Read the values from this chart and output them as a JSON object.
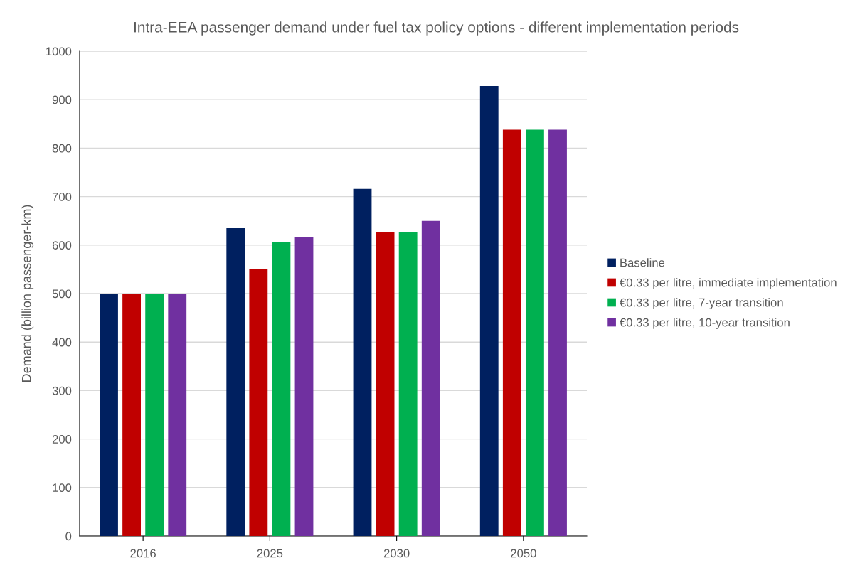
{
  "chart_data": {
    "type": "bar",
    "title": "Intra-EEA passenger demand under fuel tax policy options - different implementation periods",
    "ylabel": "Demand (billion passenger-km)",
    "categories": [
      "2016",
      "2025",
      "2030",
      "2050"
    ],
    "series": [
      {
        "name": "Baseline",
        "color": "#002060",
        "values": [
          500,
          635,
          716,
          928
        ]
      },
      {
        "name": "€0.33 per litre, immediate implementation",
        "color": "#c00000",
        "values": [
          500,
          550,
          626,
          838
        ]
      },
      {
        "name": "€0.33 per litre, 7-year transition",
        "color": "#00b050",
        "values": [
          500,
          607,
          626,
          838
        ]
      },
      {
        "name": "€0.33 per litre, 10-year transition",
        "color": "#7030a0",
        "values": [
          500,
          616,
          650,
          838
        ]
      }
    ],
    "ylim": [
      0,
      1000
    ],
    "yticks": [
      0,
      100,
      200,
      300,
      400,
      500,
      600,
      700,
      800,
      900,
      1000
    ],
    "grid": "y",
    "legend": "right"
  }
}
